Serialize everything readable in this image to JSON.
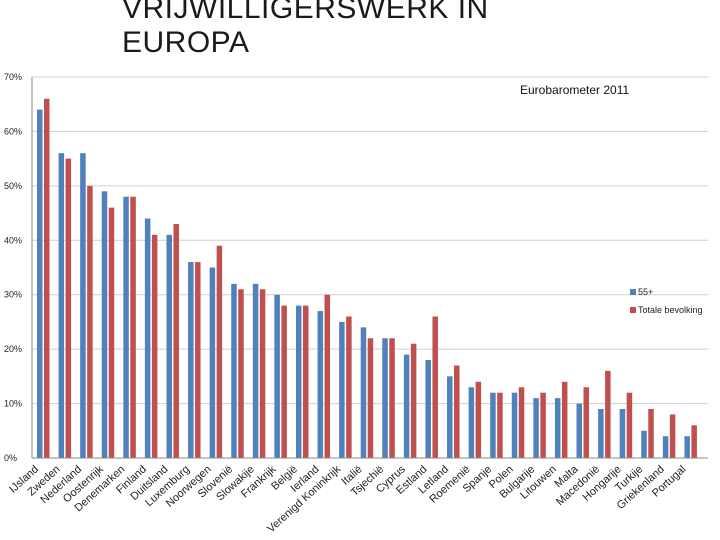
{
  "page_title": [
    "VRIJWILLIGERSWERK IN",
    "EUROPA"
  ],
  "chart_data": {
    "type": "bar",
    "subtitle": "Eurobarometer 2011",
    "categories": [
      "IJsland",
      "Zweden",
      "Nederland",
      "Oostenrijk",
      "Denemarken",
      "Finland",
      "Duitsland",
      "Luxemburg",
      "Noorwegen",
      "Slovenië",
      "Slowakije",
      "Frankrijk",
      "België",
      "Ierland",
      "Verenigd Koninkrijk",
      "Italië",
      "Tsjechië",
      "Cyprus",
      "Estland",
      "Letland",
      "Roemenië",
      "Spanje",
      "Polen",
      "Bulgarije",
      "Litouwen",
      "Malta",
      "Macedonië",
      "Hongarije",
      "Turkije",
      "Griekenland",
      "Portugal"
    ],
    "series": [
      {
        "name": "55+",
        "color": "#4f81bd",
        "values": [
          64,
          56,
          56,
          49,
          48,
          44,
          41,
          36,
          35,
          32,
          32,
          30,
          28,
          27,
          25,
          24,
          22,
          19,
          18,
          15,
          13,
          12,
          12,
          11,
          11,
          10,
          9,
          9,
          5,
          4,
          4
        ]
      },
      {
        "name": "Totale bevolking",
        "color": "#c0504d",
        "values": [
          66,
          55,
          50,
          46,
          48,
          41,
          43,
          36,
          39,
          31,
          31,
          28,
          28,
          30,
          26,
          22,
          22,
          21,
          26,
          17,
          14,
          12,
          13,
          12,
          14,
          13,
          16,
          12,
          9,
          8,
          6
        ]
      }
    ],
    "ylim": [
      0,
      70
    ],
    "yticks": [
      "0%",
      "10%",
      "20%",
      "30%",
      "40%",
      "50%",
      "60%",
      "70%"
    ],
    "legend_position": "right",
    "grid": true
  }
}
